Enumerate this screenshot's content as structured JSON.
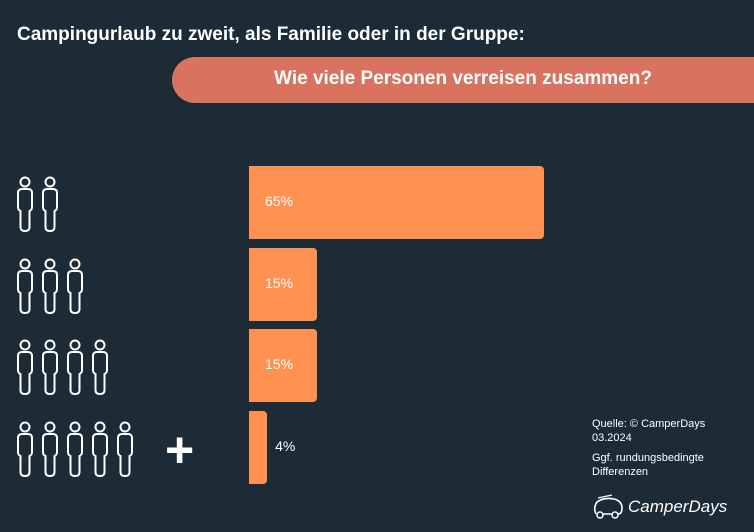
{
  "title": "Campingurlaub zu zweit, als Familie oder in der Gruppe:",
  "subtitle": "Wie viele Personen verreisen zusammen?",
  "colors": {
    "background": "#1c2b36",
    "bar": "#ff9152",
    "pill": "#d9725f"
  },
  "chart_data": {
    "type": "bar",
    "orientation": "horizontal",
    "categories": [
      "2 Personen",
      "3 Personen",
      "4 Personen",
      "5+ Personen"
    ],
    "category_icons": [
      {
        "person_icons": 2,
        "plus": false
      },
      {
        "person_icons": 3,
        "plus": false
      },
      {
        "person_icons": 4,
        "plus": false
      },
      {
        "person_icons": 5,
        "plus": true
      }
    ],
    "values": [
      65,
      15,
      15,
      4
    ],
    "labels": [
      "65%",
      "15%",
      "15%",
      "4%"
    ],
    "xlim": [
      0,
      100
    ]
  },
  "source": {
    "line1": "Quelle: © CamperDays",
    "line2": "03.2024",
    "note1": "Ggf. rundungsbedingte",
    "note2": "Differenzen"
  },
  "logo": "CamperDays"
}
